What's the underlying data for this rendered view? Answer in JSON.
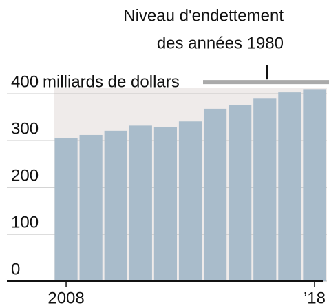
{
  "chart_data": {
    "type": "bar",
    "annotation": [
      "Niveau d'endettement",
      "des années 1980"
    ],
    "y_unit": "milliards de dollars",
    "categories": [
      "2008",
      null,
      null,
      null,
      null,
      null,
      null,
      null,
      null,
      null,
      "’18"
    ],
    "values": [
      306,
      312,
      321,
      332,
      329,
      341,
      368,
      376,
      391,
      403,
      410
    ],
    "color": "#a9bccb",
    "background": "#efebea",
    "reference_line": {
      "value": 425,
      "color": "#aaaaaa"
    },
    "ylim": [
      0,
      412
    ],
    "yticks": [
      0,
      100,
      200,
      300,
      400
    ],
    "grid": true
  }
}
